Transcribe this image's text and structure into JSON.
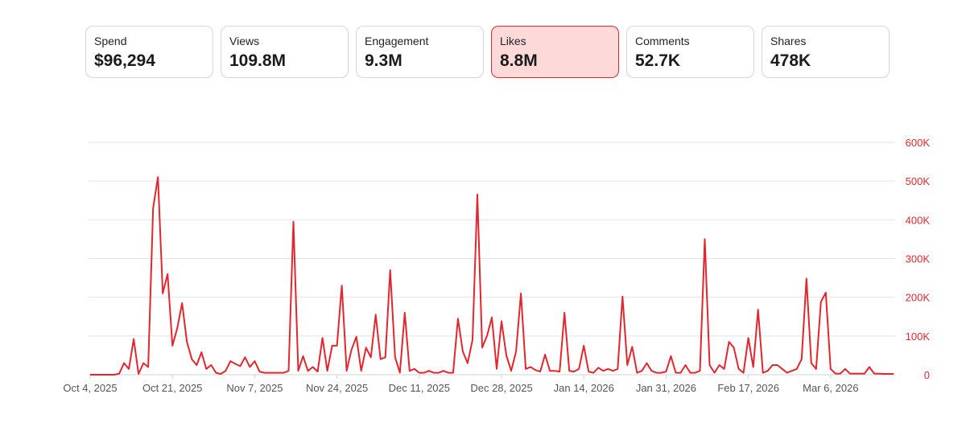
{
  "metrics": [
    {
      "label": "Spend",
      "value": "$96,294",
      "selected": false
    },
    {
      "label": "Views",
      "value": "109.8M",
      "selected": false
    },
    {
      "label": "Engagement",
      "value": "9.3M",
      "selected": false
    },
    {
      "label": "Likes",
      "value": "8.8M",
      "selected": true
    },
    {
      "label": "Comments",
      "value": "52.7K",
      "selected": false
    },
    {
      "label": "Shares",
      "value": "478K",
      "selected": false
    }
  ],
  "colors": {
    "line": "#e3262d",
    "grid": "#dde6ea",
    "selected_bg": "#fdd9d9"
  },
  "chart_data": {
    "type": "line",
    "title": "",
    "series_name": "Likes",
    "ylim": [
      0,
      600000
    ],
    "y_ticks": [
      0,
      100000,
      200000,
      300000,
      400000,
      500000,
      600000
    ],
    "y_tick_labels": [
      "0",
      "100K",
      "200K",
      "300K",
      "400K",
      "500K",
      "600K"
    ],
    "x_ticks": [
      0,
      17,
      34,
      51,
      68,
      85,
      102,
      119,
      136,
      153
    ],
    "x_tick_labels": [
      "Oct 4, 2025",
      "Oct 21, 2025",
      "Nov 7, 2025",
      "Nov 24, 2025",
      "Dec 11, 2025",
      "Dec 28, 2025",
      "Jan 14, 2026",
      "Jan 31, 2026",
      "Feb 17, 2026",
      "Mar 6, 2026"
    ],
    "x_range": [
      0,
      166
    ],
    "values": [
      0,
      0,
      0,
      0,
      0,
      0,
      3000,
      30000,
      15000,
      92000,
      2000,
      30000,
      20000,
      430000,
      510000,
      210000,
      260000,
      75000,
      120000,
      185000,
      85000,
      40000,
      25000,
      58000,
      15000,
      25000,
      5000,
      2000,
      10000,
      35000,
      28000,
      22000,
      45000,
      20000,
      35000,
      8000,
      5000,
      5000,
      5000,
      5000,
      5000,
      10000,
      395000,
      10000,
      48000,
      10000,
      20000,
      8000,
      95000,
      10000,
      75000,
      75000,
      230000,
      10000,
      65000,
      98000,
      10000,
      70000,
      45000,
      155000,
      40000,
      45000,
      270000,
      45000,
      5000,
      160000,
      10000,
      15000,
      5000,
      5000,
      10000,
      5000,
      5000,
      10000,
      5000,
      5000,
      145000,
      60000,
      30000,
      90000,
      465000,
      70000,
      100000,
      148000,
      15000,
      138000,
      50000,
      10000,
      60000,
      210000,
      15000,
      20000,
      12000,
      8000,
      52000,
      10000,
      10000,
      8000,
      160000,
      10000,
      8000,
      15000,
      75000,
      8000,
      5000,
      18000,
      10000,
      15000,
      10000,
      15000,
      202000,
      25000,
      72000,
      5000,
      10000,
      30000,
      10000,
      5000,
      5000,
      8000,
      48000,
      5000,
      5000,
      25000,
      5000,
      5000,
      10000,
      350000,
      25000,
      5000,
      25000,
      15000,
      85000,
      70000,
      15000,
      5000,
      95000,
      20000,
      168000,
      5000,
      10000,
      25000,
      25000,
      15000,
      5000,
      10000,
      15000,
      40000,
      248000,
      30000,
      15000,
      188000,
      212000,
      15000,
      3000,
      3000,
      15000,
      3000,
      3000,
      3000,
      3000,
      20000,
      3000,
      3000,
      2000,
      2000,
      2000
    ]
  }
}
